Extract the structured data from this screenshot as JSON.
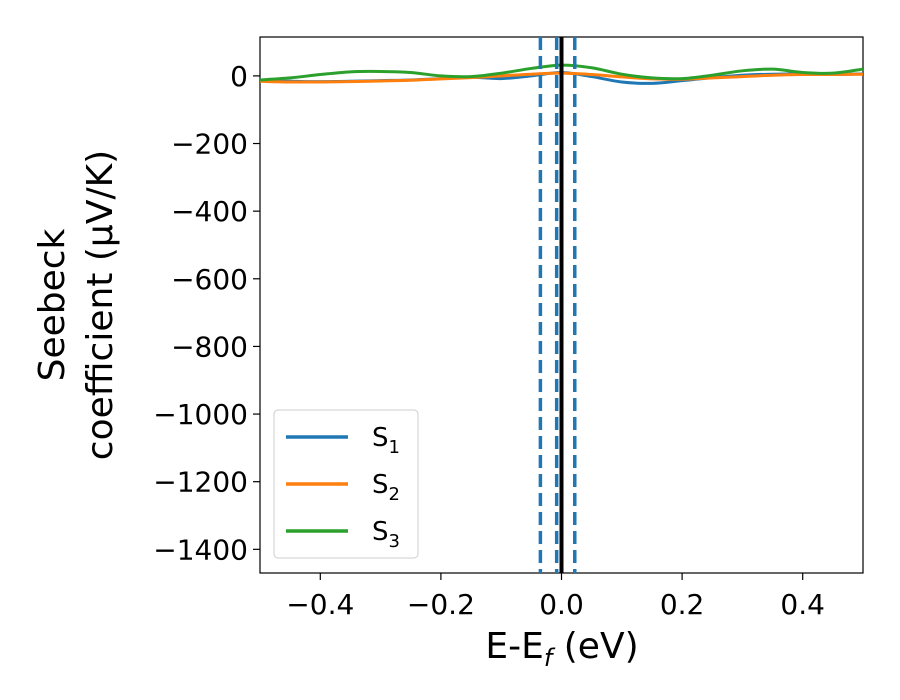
{
  "chart_data": {
    "type": "line",
    "xlabel": "E-E",
    "xlabel_sub": "f",
    "xlabel_unit": " (eV)",
    "ylabel_line1": "Seebeck",
    "ylabel_line2": "coefficient  (μV/K)",
    "xlim": [
      -0.5,
      0.5
    ],
    "ylim": [
      -1470,
      115
    ],
    "xticks": [
      -0.4,
      -0.2,
      0.0,
      0.2,
      0.4
    ],
    "xtick_labels": [
      "−0.4",
      "−0.2",
      "0.0",
      "0.2",
      "0.4"
    ],
    "yticks": [
      0,
      -200,
      -400,
      -600,
      -800,
      -1000,
      -1200,
      -1400
    ],
    "ytick_labels": [
      "0",
      "−200",
      "−400",
      "−600",
      "−800",
      "−1000",
      "−1200",
      "−1400"
    ],
    "legend_position": "lower-left",
    "series": [
      {
        "name": "S",
        "sub": "1",
        "color": "#1f77b4",
        "x": [
          -0.5,
          -0.45,
          -0.4,
          -0.35,
          -0.3,
          -0.25,
          -0.2,
          -0.15,
          -0.1,
          -0.05,
          0.0,
          0.05,
          0.1,
          0.15,
          0.2,
          0.25,
          0.3,
          0.35,
          0.4,
          0.45,
          0.5
        ],
        "y": [
          -15,
          -16,
          -17,
          -16,
          -14,
          -12,
          -8,
          -4,
          -8,
          0,
          10,
          -2,
          -18,
          -22,
          -14,
          -5,
          2,
          5,
          6,
          4,
          6
        ]
      },
      {
        "name": "S",
        "sub": "2",
        "color": "#ff7f0e",
        "x": [
          -0.5,
          -0.45,
          -0.4,
          -0.35,
          -0.3,
          -0.25,
          -0.2,
          -0.15,
          -0.1,
          -0.05,
          0.0,
          0.05,
          0.1,
          0.15,
          0.2,
          0.25,
          0.3,
          0.35,
          0.4,
          0.45,
          0.5
        ],
        "y": [
          -16,
          -18,
          -18,
          -17,
          -15,
          -13,
          -9,
          -5,
          0,
          5,
          8,
          4,
          -3,
          -9,
          -10,
          -6,
          -2,
          2,
          4,
          4,
          5
        ]
      },
      {
        "name": "S",
        "sub": "3",
        "color": "#2ca02c",
        "x": [
          -0.5,
          -0.45,
          -0.4,
          -0.35,
          -0.3,
          -0.25,
          -0.2,
          -0.15,
          -0.1,
          -0.05,
          0.0,
          0.05,
          0.1,
          0.15,
          0.2,
          0.25,
          0.3,
          0.35,
          0.4,
          0.45,
          0.5
        ],
        "y": [
          -12,
          -6,
          4,
          12,
          13,
          10,
          0,
          -2,
          8,
          22,
          32,
          24,
          5,
          -6,
          -8,
          2,
          15,
          20,
          10,
          8,
          20
        ]
      }
    ],
    "vlines": [
      {
        "x": 0.0,
        "style": "solid",
        "color": "#000000"
      },
      {
        "x": -0.035,
        "style": "dashed",
        "color": "#1f77b4"
      },
      {
        "x": -0.008,
        "style": "dashed",
        "color": "#1f77b4"
      },
      {
        "x": 0.022,
        "style": "dashed",
        "color": "#1f77b4"
      }
    ]
  }
}
